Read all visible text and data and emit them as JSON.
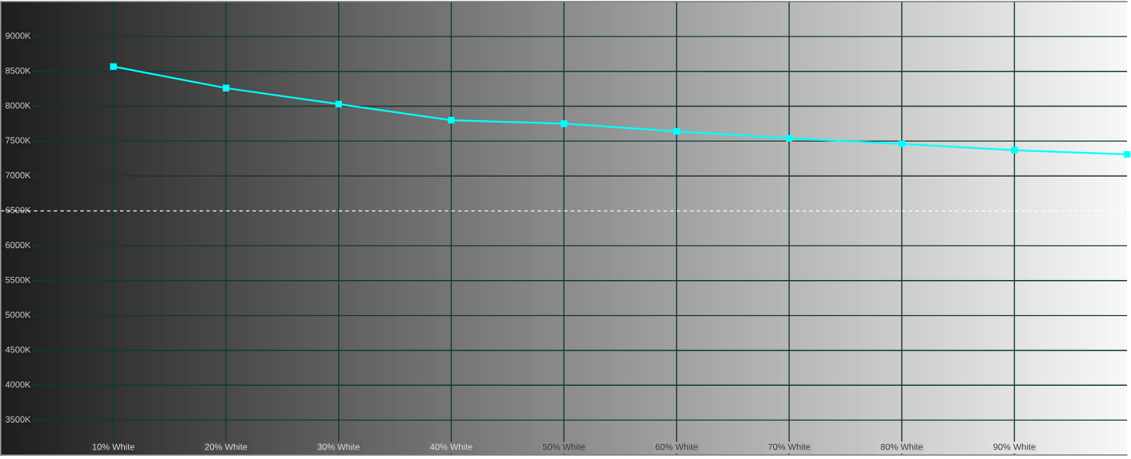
{
  "chart_data": {
    "type": "line",
    "x": [
      10,
      20,
      30,
      40,
      50,
      60,
      70,
      80,
      90,
      100
    ],
    "series": [
      {
        "color": "#00ffff",
        "values": [
          8570,
          8260,
          8030,
          7800,
          7750,
          7640,
          7540,
          7460,
          7370,
          7310
        ]
      }
    ],
    "xlim": [
      0,
      100
    ],
    "xticks": [
      {
        "value": 10,
        "label": "10% White"
      },
      {
        "value": 20,
        "label": "20% White"
      },
      {
        "value": 30,
        "label": "30% White"
      },
      {
        "value": 40,
        "label": "40% White"
      },
      {
        "value": 50,
        "label": "50% White"
      },
      {
        "value": 60,
        "label": "60% White"
      },
      {
        "value": 70,
        "label": "70% White"
      },
      {
        "value": 80,
        "label": "80% White"
      },
      {
        "value": 90,
        "label": "90% White"
      }
    ],
    "ylim": [
      3000,
      9500
    ],
    "yticks": [
      {
        "value": 3500,
        "label": "3500K"
      },
      {
        "value": 4000,
        "label": "4000K"
      },
      {
        "value": 4500,
        "label": "4500K"
      },
      {
        "value": 5000,
        "label": "5000K"
      },
      {
        "value": 5500,
        "label": "5500K"
      },
      {
        "value": 6000,
        "label": "6000K"
      },
      {
        "value": 6500,
        "label": "6500K"
      },
      {
        "value": 7000,
        "label": "7000K"
      },
      {
        "value": 7500,
        "label": "7500K"
      },
      {
        "value": 8000,
        "label": "8000K"
      },
      {
        "value": 8500,
        "label": "8500K"
      },
      {
        "value": 9000,
        "label": "9000K"
      }
    ],
    "grid": true,
    "marker": "square",
    "line_style": "solid",
    "ref_lines": [
      {
        "axis": "y",
        "value": 6500,
        "color": "#ffffff",
        "line_style": "dashed"
      }
    ]
  }
}
